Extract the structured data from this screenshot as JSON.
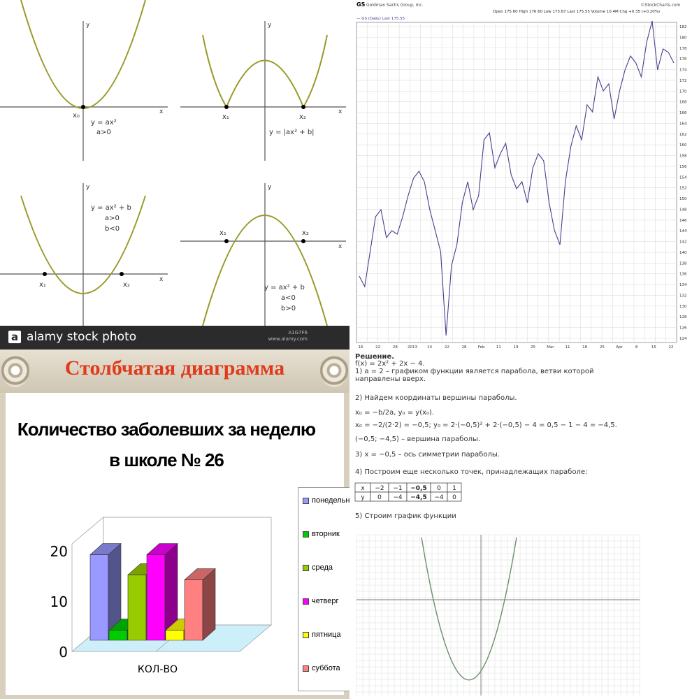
{
  "top_left": {
    "watermark_text": "alamy stock photo",
    "watermark_logo": "a",
    "small_id": "A1G7F6",
    "small_url": "www.alamy.com",
    "graphs": [
      {
        "label_y": "y",
        "label_x": "x",
        "points": [
          "x₀"
        ],
        "formula": "y = ax²",
        "conditions": [
          "a>0"
        ]
      },
      {
        "label_y": "y",
        "label_x": "x",
        "points": [
          "x₁",
          "x₂"
        ],
        "formula": "y = |ax² + b|",
        "conditions": []
      },
      {
        "label_y": "y",
        "label_x": "x",
        "points": [
          "x₁",
          "x₂"
        ],
        "formula": "y = ax² + b",
        "conditions": [
          "a>0",
          "b<0"
        ]
      },
      {
        "label_y": "y",
        "label_x": "x",
        "points": [
          "x₁",
          "x₂"
        ],
        "formula": "y = ax² + b",
        "conditions": [
          "a<0",
          "b>0"
        ]
      }
    ]
  },
  "top_right": {
    "ticker": "GS",
    "header_name": "Goldman Sachs Group, Inc.",
    "header_right": "©StockCharts.com",
    "header_ohlc": "Open 175.60  High 176.60  Low 173.87  Last 175.55  Volume 10.4M  Chg +0.35 (+0.20%)",
    "legend": "— GS (Daily) Last 175.55",
    "x_labels": [
      "16",
      "22",
      "28",
      "2013",
      "14",
      "22",
      "28",
      "Feb",
      "11",
      "19",
      "25",
      "Mar",
      "11",
      "18",
      "25",
      "Apr",
      "8",
      "15",
      "22"
    ],
    "y_labels": [
      "182",
      "180",
      "178",
      "176",
      "174",
      "172",
      "170",
      "168",
      "166",
      "164",
      "162",
      "160",
      "158",
      "156",
      "154",
      "152",
      "150",
      "148",
      "146",
      "144",
      "142",
      "140",
      "138",
      "136",
      "134",
      "132",
      "130",
      "128",
      "126",
      "124"
    ],
    "line_color": "#4a3f8c"
  },
  "bottom_left": {
    "slide_title": "Столбчатая диаграмма",
    "chart_data": {
      "type": "bar",
      "title": "Количество заболевших за неделю в школе № 26",
      "categories": [
        "КОЛ-ВО"
      ],
      "series": [
        {
          "name": "понедельник",
          "values": [
            17
          ],
          "color": "#9999ff"
        },
        {
          "name": "вторник",
          "values": [
            2
          ],
          "color": "#00cc00"
        },
        {
          "name": "среда",
          "values": [
            13
          ],
          "color": "#99cc00"
        },
        {
          "name": "четверг",
          "values": [
            17
          ],
          "color": "#ff00ff"
        },
        {
          "name": "пятница",
          "values": [
            2
          ],
          "color": "#ffff00"
        },
        {
          "name": "суббота",
          "values": [
            12
          ],
          "color": "#ff8080"
        }
      ],
      "y_ticks": [
        "0",
        "10",
        "20"
      ],
      "ylim": [
        0,
        20
      ],
      "legend_placement": "right"
    }
  },
  "bottom_right": {
    "solution_lines": [
      "Решение.",
      "f(x) = 2x² + 2x − 4.",
      "1) a = 2 – графиком функции является парабола, ветви которой",
      "направлены вверх.",
      "2) Найдем координаты вершины параболы.",
      "x₀ = −b/2a,  y₀ = y(x₀).",
      "x₀ = −2/(2·2) = −0,5;  y₀ = 2·(−0,5)² + 2·(−0,5) − 4 = 0,5 − 1 − 4 = −4,5.",
      "(−0,5; −4,5) – вершина параболы.",
      "3) x = −0,5 – ось симметрии параболы.",
      "4) Построим еще несколько точек, принадлежащих параболе:",
      "5) Строим график функции"
    ],
    "table": {
      "rows": [
        [
          "x",
          "−2",
          "−1",
          "−0,5",
          "0",
          "1"
        ],
        [
          "y",
          "0",
          "−4",
          "−4,5",
          "−4",
          "0"
        ]
      ]
    }
  }
}
